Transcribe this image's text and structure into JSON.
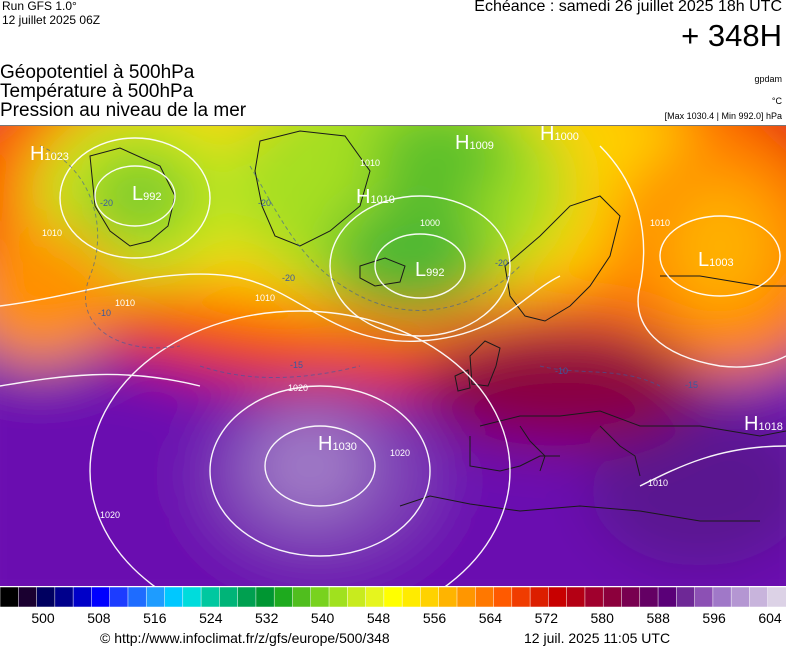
{
  "header": {
    "run_label": "Run GFS 1.0°",
    "run_date": "12 juillet 2025 06Z",
    "valid_time": "Échéance : samedi 26 juillet 2025 18h UTC",
    "lead_time": "+ 348H"
  },
  "fields": {
    "geopotential": "Géopotentiel à 500hPa",
    "temperature": "Température à 500hPa",
    "pressure": "Pression au niveau de la mer"
  },
  "units": {
    "geopotential": "gpdam",
    "temperature": "°C",
    "minmax": "[Max 1030.4 | Min 992.0] hPa"
  },
  "map": {
    "pressure_centers": [
      {
        "type": "H",
        "value": "1023"
      },
      {
        "type": "L",
        "value": "992"
      },
      {
        "type": "H",
        "value": "1010"
      },
      {
        "type": "H",
        "value": "1009"
      },
      {
        "type": "H",
        "value": "1000"
      },
      {
        "type": "L",
        "value": "992"
      },
      {
        "type": "L",
        "value": "1003"
      },
      {
        "type": "H",
        "value": "1030"
      },
      {
        "type": "H",
        "value": "1018"
      }
    ],
    "isobar_labels": [
      "1010",
      "1010",
      "1000",
      "1010",
      "1010",
      "1010",
      "1020",
      "1020",
      "1020",
      "1010"
    ],
    "isotherm_labels": [
      "-20",
      "-20",
      "-20",
      "-20",
      "-15",
      "-10",
      "-10",
      "-15"
    ]
  },
  "colorbar": {
    "ticks": [
      "500",
      "508",
      "516",
      "524",
      "532",
      "540",
      "548",
      "556",
      "564",
      "572",
      "580",
      "588",
      "596",
      "604"
    ],
    "colors": [
      "#000000",
      "#1a0030",
      "#000060",
      "#00008c",
      "#0000c8",
      "#0000ff",
      "#1c3cff",
      "#1e6cff",
      "#1e9cff",
      "#00c8ff",
      "#00dcdc",
      "#00c8a0",
      "#00b478",
      "#00a050",
      "#009632",
      "#1eaa1e",
      "#50be1e",
      "#78d21e",
      "#a0e11e",
      "#c8eb1e",
      "#e6f51e",
      "#ffff00",
      "#ffeb00",
      "#ffd200",
      "#ffb400",
      "#ff9600",
      "#ff7800",
      "#ff5a00",
      "#f03c00",
      "#dc1e00",
      "#c80000",
      "#b40014",
      "#a0002d",
      "#8c003c",
      "#780050",
      "#640064",
      "#5a0078",
      "#6e2896",
      "#8c50b4",
      "#a078c8",
      "#b496d2",
      "#c8b4dc",
      "#dcd2e6"
    ],
    "range": [
      500,
      604
    ]
  },
  "footer": {
    "url": "© http://www.infoclimat.fr/z/gfs/europe/500/348",
    "timestamp": "12 juil. 2025 11:05 UTC"
  }
}
